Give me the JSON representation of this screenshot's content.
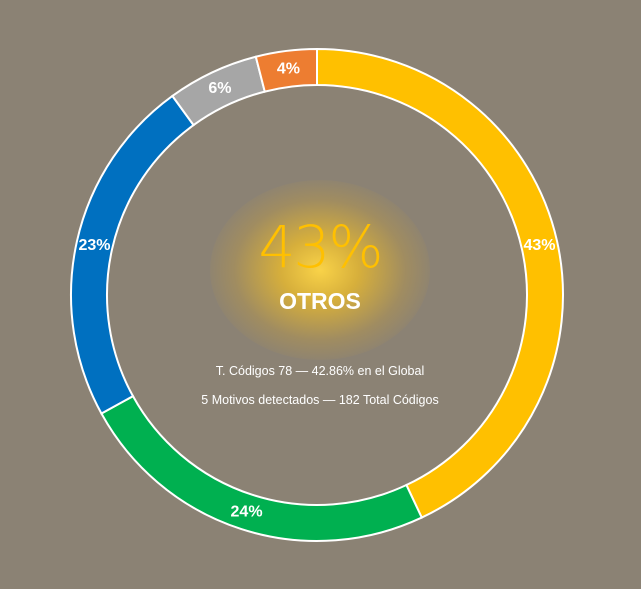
{
  "chart_data": {
    "type": "pie",
    "style": "donut",
    "categories": [
      "",
      "",
      "",
      "",
      ""
    ],
    "values": [
      43,
      24,
      23,
      6,
      4
    ],
    "labels": [
      "43%",
      "24%",
      "23%",
      "6%",
      "4%"
    ],
    "colors": [
      "#ffc000",
      "#00b050",
      "#0070c0",
      "#a6a6a6",
      "#ed7d31"
    ],
    "center": {
      "value": "43%",
      "label": "OTROS",
      "value_color": "#ffc000"
    },
    "info_lines": [
      "T. Códigos 78 — 42.86% en el Global",
      "5 Motivos detectados — 182 Total Códigos"
    ]
  },
  "background_color": "#8b8274"
}
